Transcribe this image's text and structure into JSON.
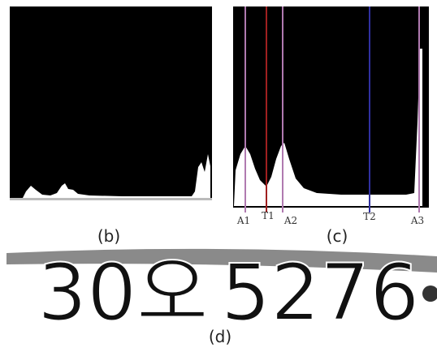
{
  "panels": [
    {
      "label": "(b)"
    },
    {
      "label": "(c)",
      "markers": [
        "A1",
        "T1",
        "A2",
        "T2",
        "A3"
      ]
    },
    {
      "label": "(d)",
      "plate_text": [
        "30오",
        "5276"
      ]
    }
  ]
}
